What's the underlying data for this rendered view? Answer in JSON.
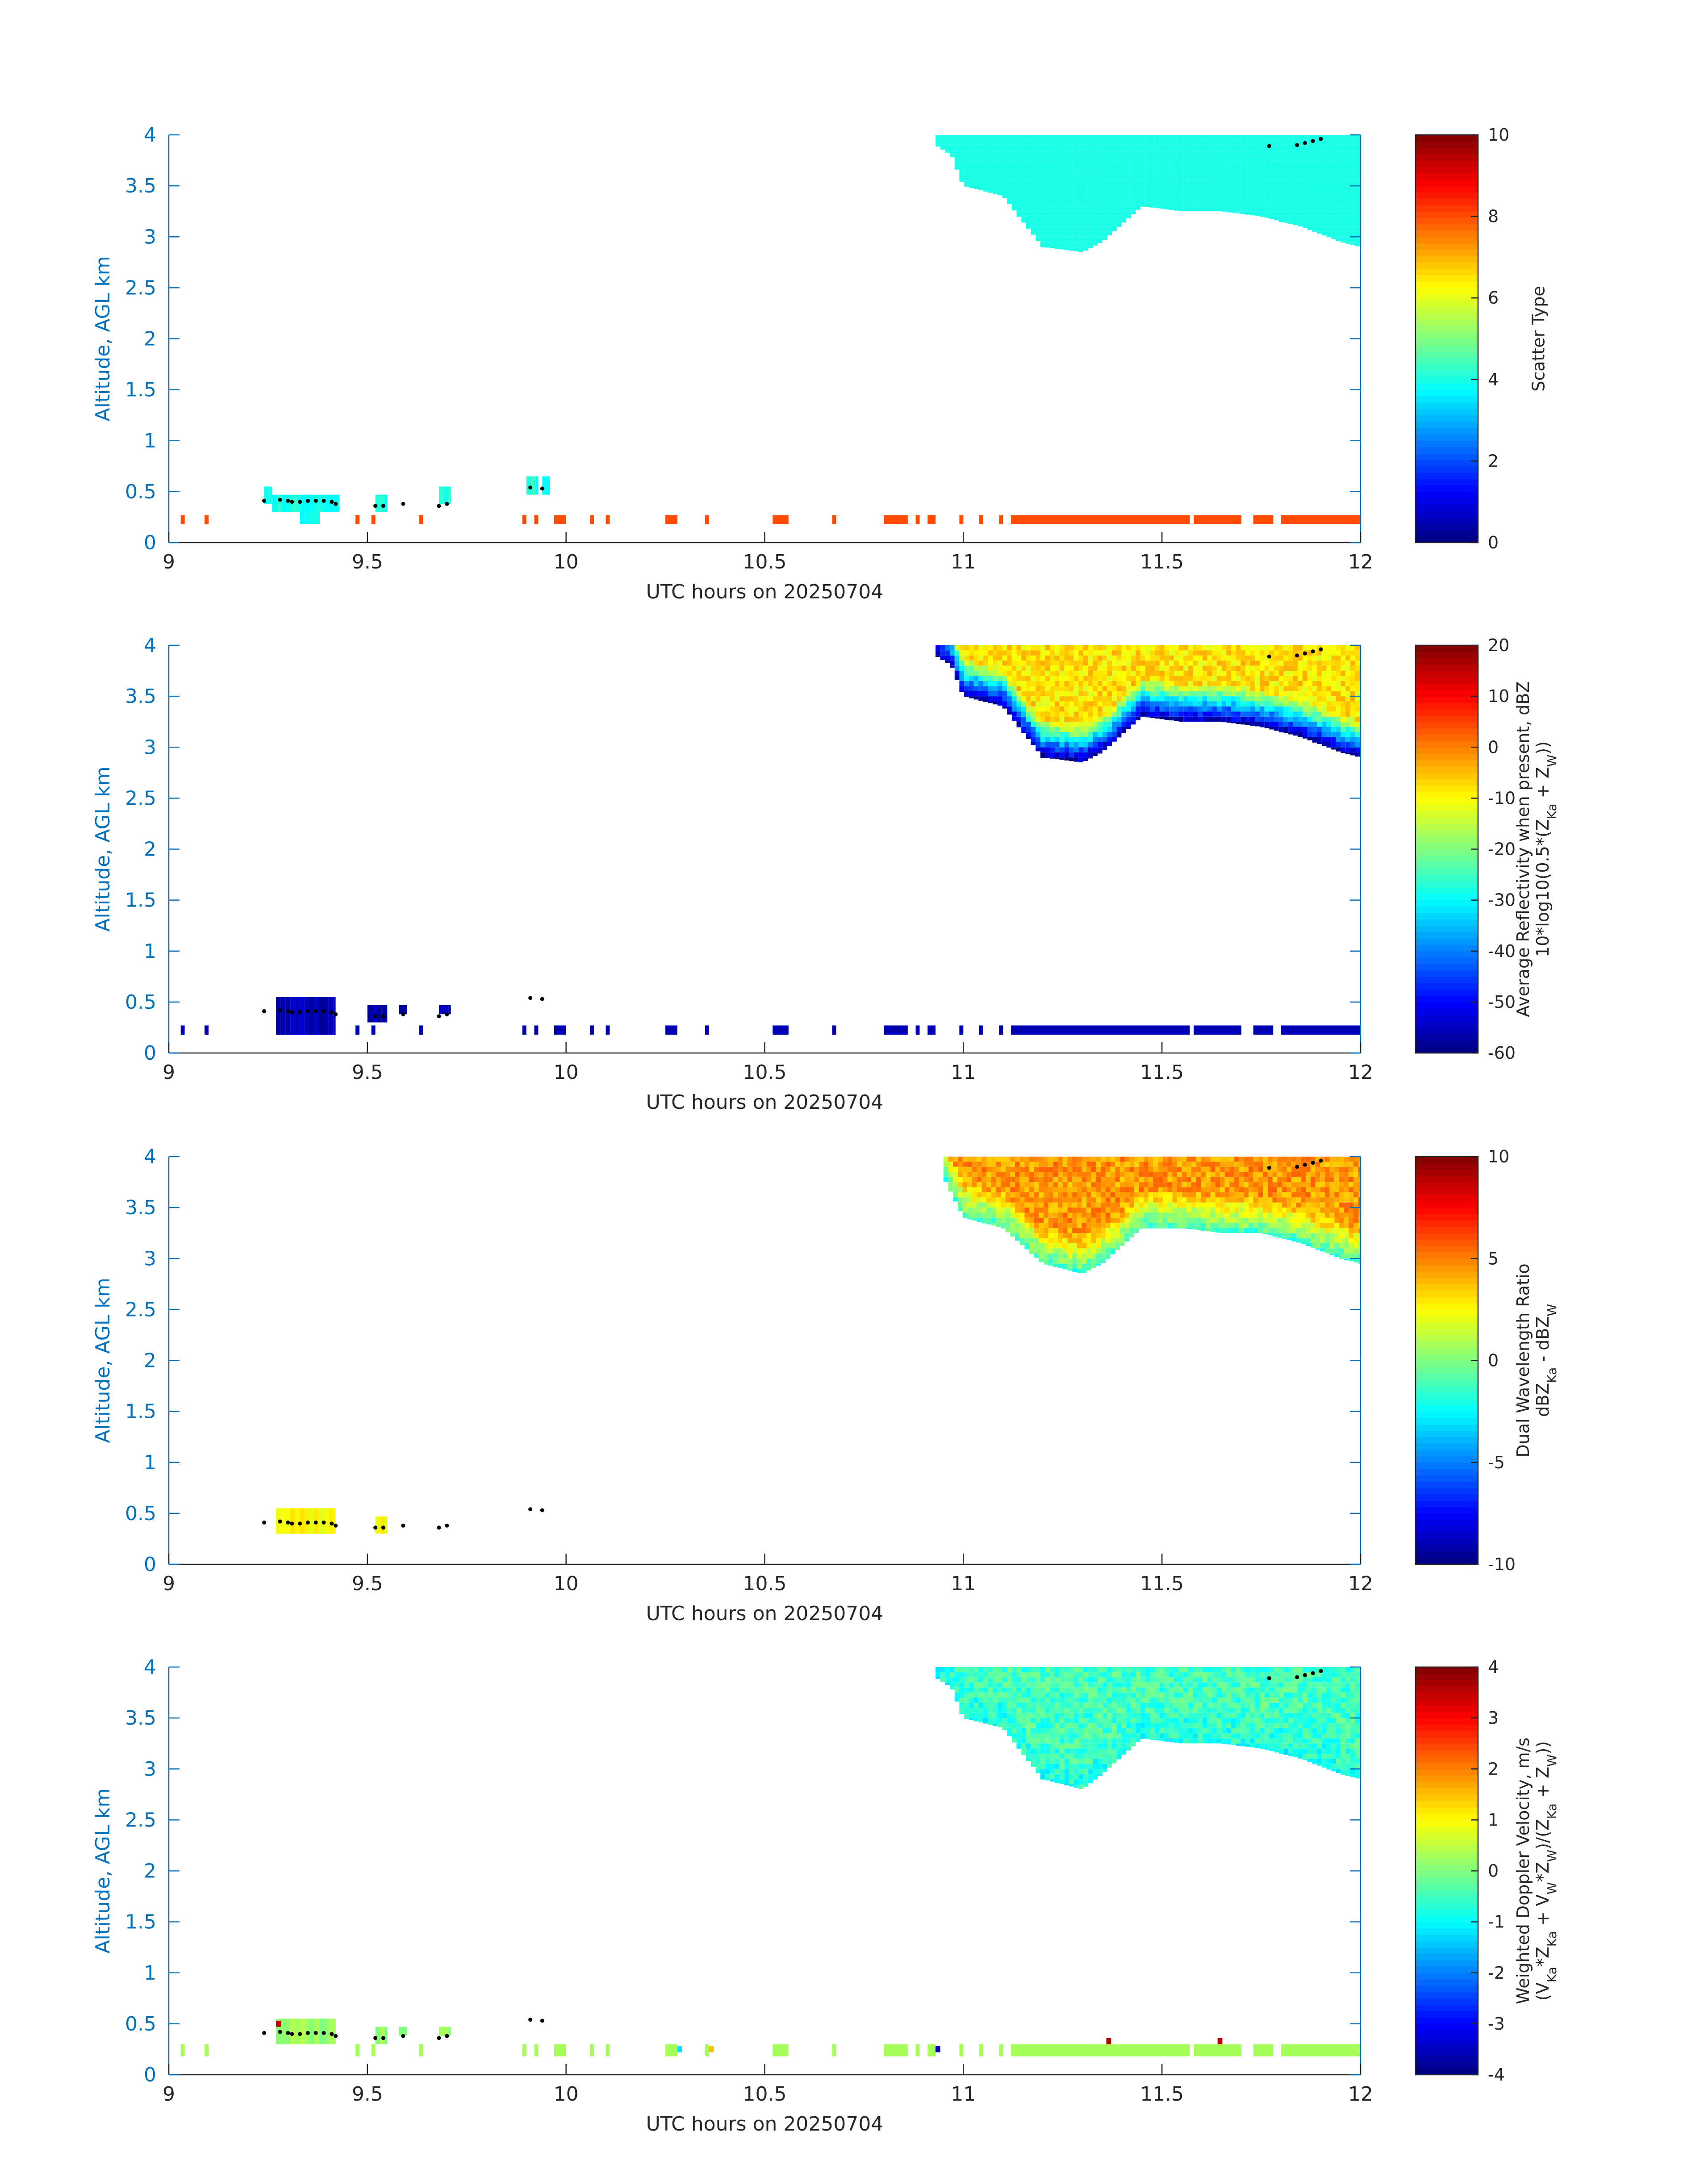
{
  "chart_data": [
    {
      "type": "heatmap",
      "variable": "scatter_type",
      "xlabel": "UTC hours on 20250704",
      "ylabel": "Altitude, AGL km",
      "xlim": [
        9,
        12
      ],
      "ylim": [
        0,
        4
      ],
      "xticks": [
        "9",
        "9.5",
        "10",
        "10.5",
        "11",
        "11.5",
        "12"
      ],
      "yticks": [
        "0",
        "0.5",
        "1",
        "1.5",
        "2",
        "2.5",
        "3",
        "3.5",
        "4"
      ],
      "colorbar": {
        "label_lines": [
          "Scatter Type"
        ],
        "clim": [
          0,
          10
        ],
        "ticks": [
          "0",
          "2",
          "4",
          "6",
          "8",
          "10"
        ],
        "colormap": "jet"
      },
      "cloud": {
        "x_range": [
          10.93,
          12.0
        ],
        "top_km": 4.0,
        "base_profile": [
          [
            10.93,
            3.9
          ],
          [
            10.97,
            3.8
          ],
          [
            11.0,
            3.5
          ],
          [
            11.1,
            3.4
          ],
          [
            11.2,
            2.9
          ],
          [
            11.3,
            2.85
          ],
          [
            11.35,
            2.95
          ],
          [
            11.45,
            3.3
          ],
          [
            11.55,
            3.25
          ],
          [
            11.65,
            3.25
          ],
          [
            11.75,
            3.2
          ],
          [
            11.85,
            3.1
          ],
          [
            11.95,
            2.95
          ],
          [
            12.0,
            2.9
          ]
        ],
        "value": 4.0
      },
      "low_echo_value": 8.0,
      "low_layer_km": [
        0.18,
        0.27
      ],
      "low_layer_segments": [
        [
          9.03,
          9.04
        ],
        [
          9.09,
          9.1
        ],
        [
          9.47,
          9.48
        ],
        [
          9.51,
          9.52
        ],
        [
          9.63,
          9.64
        ],
        [
          9.89,
          9.9
        ],
        [
          9.92,
          9.93
        ],
        [
          9.97,
          10.0
        ],
        [
          10.06,
          10.07
        ],
        [
          10.1,
          10.11
        ],
        [
          10.25,
          10.28
        ],
        [
          10.35,
          10.36
        ],
        [
          10.52,
          10.56
        ],
        [
          10.67,
          10.68
        ],
        [
          10.8,
          10.86
        ],
        [
          10.88,
          10.89
        ],
        [
          10.91,
          10.93
        ],
        [
          10.99,
          11.0
        ],
        [
          11.04,
          11.05
        ],
        [
          11.09,
          11.1
        ],
        [
          11.12,
          11.57
        ],
        [
          11.58,
          11.7
        ],
        [
          11.73,
          11.78
        ],
        [
          11.8,
          12.0
        ]
      ],
      "low_cloud_blobs": [
        [
          9.24,
          9.26,
          0.38,
          0.55
        ],
        [
          9.26,
          9.43,
          0.3,
          0.47
        ],
        [
          9.33,
          9.38,
          0.18,
          0.3
        ],
        [
          9.52,
          9.55,
          0.3,
          0.47
        ],
        [
          9.68,
          9.71,
          0.38,
          0.55
        ],
        [
          9.9,
          9.93,
          0.47,
          0.65
        ],
        [
          9.94,
          9.96,
          0.47,
          0.65
        ]
      ],
      "low_blob_value": 4.0
    },
    {
      "type": "heatmap",
      "variable": "average_reflectivity",
      "xlabel": "UTC hours on 20250704",
      "ylabel": "Altitude, AGL km",
      "xlim": [
        9,
        12
      ],
      "ylim": [
        0,
        4
      ],
      "xticks": [
        "9",
        "9.5",
        "10",
        "10.5",
        "11",
        "11.5",
        "12"
      ],
      "yticks": [
        "0",
        "0.5",
        "1",
        "1.5",
        "2",
        "2.5",
        "3",
        "3.5",
        "4"
      ],
      "colorbar": {
        "label_lines": [
          "Average Reflectivity when present, dBZ",
          "10*log10(0.5*(Z_Ka + Z_W))"
        ],
        "clim": [
          -60,
          20
        ],
        "ticks": [
          "-60",
          "-50",
          "-40",
          "-30",
          "-20",
          "-10",
          "0",
          "10",
          "20"
        ],
        "colormap": "jet"
      },
      "cloud": {
        "x_range": [
          10.93,
          12.0
        ],
        "top_km": 4.0,
        "base_profile": [
          [
            10.93,
            3.9
          ],
          [
            10.97,
            3.8
          ],
          [
            11.0,
            3.5
          ],
          [
            11.1,
            3.4
          ],
          [
            11.2,
            2.9
          ],
          [
            11.3,
            2.85
          ],
          [
            11.35,
            2.95
          ],
          [
            11.45,
            3.3
          ],
          [
            11.55,
            3.25
          ],
          [
            11.65,
            3.25
          ],
          [
            11.75,
            3.2
          ],
          [
            11.85,
            3.1
          ],
          [
            11.95,
            2.95
          ],
          [
            12.0,
            2.9
          ]
        ],
        "core_value": -8,
        "edge_value": -55
      },
      "low_echo_value": -56,
      "low_layer_km": [
        0.18,
        0.27
      ],
      "low_layer_segments": [
        [
          9.03,
          9.04
        ],
        [
          9.09,
          9.1
        ],
        [
          9.47,
          9.48
        ],
        [
          9.51,
          9.52
        ],
        [
          9.63,
          9.64
        ],
        [
          9.89,
          9.9
        ],
        [
          9.92,
          9.93
        ],
        [
          9.97,
          10.0
        ],
        [
          10.06,
          10.07
        ],
        [
          10.1,
          10.11
        ],
        [
          10.25,
          10.28
        ],
        [
          10.35,
          10.36
        ],
        [
          10.52,
          10.56
        ],
        [
          10.67,
          10.68
        ],
        [
          10.8,
          10.86
        ],
        [
          10.88,
          10.89
        ],
        [
          10.91,
          10.93
        ],
        [
          10.99,
          11.0
        ],
        [
          11.04,
          11.05
        ],
        [
          11.09,
          11.1
        ],
        [
          11.12,
          11.57
        ],
        [
          11.58,
          11.7
        ],
        [
          11.73,
          11.78
        ],
        [
          11.8,
          12.0
        ]
      ],
      "low_cloud_blobs": [
        [
          9.27,
          9.42,
          0.18,
          0.55
        ],
        [
          9.5,
          9.55,
          0.3,
          0.47
        ],
        [
          9.58,
          9.6,
          0.38,
          0.47
        ],
        [
          9.68,
          9.71,
          0.38,
          0.47
        ]
      ],
      "low_blob_value": -56
    },
    {
      "type": "heatmap",
      "variable": "dual_wavelength_ratio",
      "xlabel": "UTC hours on 20250704",
      "ylabel": "Altitude, AGL km",
      "xlim": [
        9,
        12
      ],
      "ylim": [
        0,
        4
      ],
      "xticks": [
        "9",
        "9.5",
        "10",
        "10.5",
        "11",
        "11.5",
        "12"
      ],
      "yticks": [
        "0",
        "0.5",
        "1",
        "1.5",
        "2",
        "2.5",
        "3",
        "3.5",
        "4"
      ],
      "colorbar": {
        "label_lines": [
          "Dual Wavelength Ratio",
          "dBZ_Ka - dBZ_W"
        ],
        "clim": [
          -10,
          10
        ],
        "ticks": [
          "-10",
          "-5",
          "0",
          "5",
          "10"
        ],
        "colormap": "jet"
      },
      "cloud": {
        "x_range": [
          10.95,
          12.0
        ],
        "top_km": 4.0,
        "base_profile": [
          [
            10.95,
            3.8
          ],
          [
            11.0,
            3.4
          ],
          [
            11.1,
            3.3
          ],
          [
            11.2,
            2.95
          ],
          [
            11.3,
            2.85
          ],
          [
            11.35,
            2.95
          ],
          [
            11.45,
            3.3
          ],
          [
            11.55,
            3.3
          ],
          [
            11.65,
            3.25
          ],
          [
            11.75,
            3.25
          ],
          [
            11.85,
            3.15
          ],
          [
            11.95,
            3.0
          ],
          [
            12.0,
            2.95
          ]
        ],
        "core_value": 4.5,
        "edge_value": -1.0
      },
      "low_cloud_blobs": [
        [
          9.27,
          9.42,
          0.3,
          0.55
        ],
        [
          9.52,
          9.55,
          0.3,
          0.47
        ]
      ],
      "low_blob_value": 2.5
    },
    {
      "type": "heatmap",
      "variable": "weighted_doppler_velocity",
      "xlabel": "UTC hours on 20250704",
      "ylabel": "Altitude, AGL km",
      "xlim": [
        9,
        12
      ],
      "ylim": [
        0,
        4
      ],
      "xticks": [
        "9",
        "9.5",
        "10",
        "10.5",
        "11",
        "11.5",
        "12"
      ],
      "yticks": [
        "0",
        "0.5",
        "1",
        "1.5",
        "2",
        "2.5",
        "3",
        "3.5",
        "4"
      ],
      "colorbar": {
        "label_lines": [
          "Weighted Doppler Velocity, m/s",
          "(V_Ka*Z_Ka + V_W*Z_W)/(Z_Ka + Z_W))"
        ],
        "clim": [
          -4,
          4
        ],
        "ticks": [
          "-4",
          "-3",
          "-2",
          "-1",
          "0",
          "1",
          "2",
          "3",
          "4"
        ],
        "colormap": "jet"
      },
      "cloud": {
        "x_range": [
          10.93,
          12.0
        ],
        "top_km": 4.0,
        "base_profile": [
          [
            10.93,
            3.9
          ],
          [
            10.97,
            3.8
          ],
          [
            11.0,
            3.5
          ],
          [
            11.1,
            3.4
          ],
          [
            11.2,
            2.9
          ],
          [
            11.3,
            2.8
          ],
          [
            11.35,
            2.95
          ],
          [
            11.45,
            3.3
          ],
          [
            11.55,
            3.25
          ],
          [
            11.65,
            3.25
          ],
          [
            11.75,
            3.2
          ],
          [
            11.85,
            3.1
          ],
          [
            11.95,
            2.95
          ],
          [
            12.0,
            2.9
          ]
        ],
        "core_value": -0.5,
        "edge_value": -0.8
      },
      "low_echo_value": 0.3,
      "low_layer_km": [
        0.18,
        0.3
      ],
      "low_layer_segments": [
        [
          9.03,
          9.04
        ],
        [
          9.09,
          9.1
        ],
        [
          9.47,
          9.48
        ],
        [
          9.51,
          9.52
        ],
        [
          9.63,
          9.64
        ],
        [
          9.89,
          9.9
        ],
        [
          9.92,
          9.93
        ],
        [
          9.97,
          10.0
        ],
        [
          10.06,
          10.07
        ],
        [
          10.1,
          10.11
        ],
        [
          10.25,
          10.28
        ],
        [
          10.35,
          10.36
        ],
        [
          10.52,
          10.56
        ],
        [
          10.67,
          10.68
        ],
        [
          10.8,
          10.86
        ],
        [
          10.88,
          10.89
        ],
        [
          10.91,
          10.93
        ],
        [
          10.99,
          11.0
        ],
        [
          11.04,
          11.05
        ],
        [
          11.09,
          11.1
        ],
        [
          11.12,
          11.57
        ],
        [
          11.58,
          11.7
        ],
        [
          11.73,
          11.78
        ],
        [
          11.8,
          12.0
        ]
      ],
      "low_cloud_blobs": [
        [
          9.27,
          9.42,
          0.3,
          0.55
        ],
        [
          9.52,
          9.55,
          0.3,
          0.47
        ],
        [
          9.58,
          9.6,
          0.38,
          0.47
        ],
        [
          9.68,
          9.71,
          0.38,
          0.47
        ]
      ],
      "low_blob_value": 0.2,
      "speckles": [
        [
          9.27,
          0.5,
          3.5
        ],
        [
          11.36,
          0.33,
          3.5
        ],
        [
          11.64,
          0.33,
          3.5
        ],
        [
          10.93,
          0.25,
          -3.5
        ],
        [
          10.28,
          0.25,
          -1.2
        ],
        [
          10.36,
          0.25,
          1.5
        ]
      ]
    }
  ],
  "overlay_points": {
    "low": [
      [
        9.24,
        0.41
      ],
      [
        9.28,
        0.42
      ],
      [
        9.3,
        0.41
      ],
      [
        9.31,
        0.4
      ],
      [
        9.33,
        0.4
      ],
      [
        9.35,
        0.41
      ],
      [
        9.37,
        0.41
      ],
      [
        9.39,
        0.41
      ],
      [
        9.41,
        0.4
      ],
      [
        9.42,
        0.38
      ],
      [
        9.52,
        0.36
      ],
      [
        9.54,
        0.36
      ],
      [
        9.59,
        0.38
      ],
      [
        9.68,
        0.36
      ],
      [
        9.7,
        0.38
      ],
      [
        9.91,
        0.54
      ],
      [
        9.94,
        0.53
      ]
    ],
    "high": [
      [
        11.77,
        3.89
      ],
      [
        11.84,
        3.9
      ],
      [
        11.86,
        3.92
      ],
      [
        11.88,
        3.94
      ],
      [
        11.9,
        3.96
      ]
    ]
  }
}
